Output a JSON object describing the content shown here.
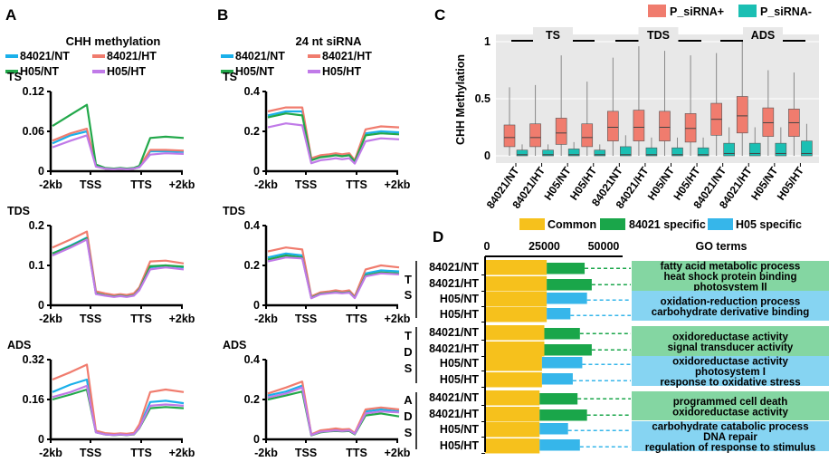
{
  "colors": {
    "nt84021": "#1ab0ea",
    "ht84021": "#f07c6e",
    "nt_h05": "#22a84a",
    "ht_h05": "#c07ae8",
    "siPlus": "#f07c6e",
    "siMinus": "#1bbfb3",
    "box_bg": "#e8e8e8",
    "common": "#f6c11c",
    "spec84021": "#1aa64a",
    "specH05": "#36b6ea",
    "go_green": "#84d6a2",
    "go_blue": "#86d4f2"
  },
  "panel_labels": {
    "a": "A",
    "b": "B",
    "c": "C",
    "d": "D"
  },
  "chart_data": [
    {
      "id": "A",
      "type": "line",
      "title": "CHH methylation",
      "legend": [
        "84021/NT",
        "84021/HT",
        "H05/NT",
        "H05/HT"
      ],
      "x_ticks": [
        "-2kb",
        "TSS",
        "TTS",
        "+2kb"
      ],
      "subplots": [
        {
          "region": "TS",
          "ylim": [
            0,
            0.12
          ],
          "yticks": [
            "0.12",
            "0.06",
            "0"
          ],
          "series": [
            {
              "name": "84021/NT",
              "values": [
                0.042,
                0.054,
                0.06,
                0.008,
                0.004,
                0.003,
                0.004,
                0.003,
                0.004,
                0.006,
                0.03,
                0.03,
                0.029
              ]
            },
            {
              "name": "84021/HT",
              "values": [
                0.046,
                0.057,
                0.064,
                0.008,
                0.004,
                0.003,
                0.004,
                0.003,
                0.004,
                0.007,
                0.032,
                0.032,
                0.031
              ]
            },
            {
              "name": "H05/NT",
              "values": [
                0.068,
                0.085,
                0.1,
                0.01,
                0.005,
                0.004,
                0.005,
                0.004,
                0.005,
                0.008,
                0.05,
                0.052,
                0.05
              ]
            },
            {
              "name": "H05/HT",
              "values": [
                0.036,
                0.046,
                0.054,
                0.007,
                0.004,
                0.003,
                0.004,
                0.003,
                0.004,
                0.006,
                0.025,
                0.027,
                0.026
              ]
            }
          ]
        },
        {
          "region": "TDS",
          "ylim": [
            0,
            0.2
          ],
          "yticks": [
            "0.2",
            "0.1",
            "0"
          ],
          "series": [
            {
              "name": "84021/NT",
              "values": [
                0.13,
                0.15,
                0.17,
                0.03,
                0.025,
                0.022,
                0.024,
                0.022,
                0.025,
                0.04,
                0.095,
                0.1,
                0.095
              ]
            },
            {
              "name": "84021/HT",
              "values": [
                0.145,
                0.165,
                0.185,
                0.035,
                0.03,
                0.026,
                0.028,
                0.026,
                0.03,
                0.045,
                0.11,
                0.112,
                0.105
              ]
            },
            {
              "name": "H05/NT",
              "values": [
                0.13,
                0.148,
                0.168,
                0.03,
                0.025,
                0.022,
                0.024,
                0.022,
                0.025,
                0.04,
                0.098,
                0.1,
                0.097
              ]
            },
            {
              "name": "H05/HT",
              "values": [
                0.125,
                0.145,
                0.165,
                0.028,
                0.024,
                0.021,
                0.023,
                0.021,
                0.024,
                0.038,
                0.09,
                0.095,
                0.09
              ]
            }
          ]
        },
        {
          "region": "ADS",
          "ylim": [
            0,
            0.32
          ],
          "yticks": [
            "0.32",
            "0.16",
            "0"
          ],
          "series": [
            {
              "name": "84021/NT",
              "values": [
                0.19,
                0.22,
                0.24,
                0.03,
                0.02,
                0.018,
                0.02,
                0.018,
                0.022,
                0.05,
                0.15,
                0.155,
                0.145
              ]
            },
            {
              "name": "84021/HT",
              "values": [
                0.24,
                0.27,
                0.3,
                0.035,
                0.025,
                0.022,
                0.024,
                0.022,
                0.026,
                0.06,
                0.19,
                0.2,
                0.19
              ]
            },
            {
              "name": "H05/NT",
              "values": [
                0.16,
                0.18,
                0.2,
                0.028,
                0.02,
                0.017,
                0.019,
                0.017,
                0.02,
                0.045,
                0.125,
                0.13,
                0.125
              ]
            },
            {
              "name": "H05/HT",
              "values": [
                0.17,
                0.19,
                0.215,
                0.028,
                0.02,
                0.018,
                0.02,
                0.018,
                0.021,
                0.047,
                0.135,
                0.14,
                0.135
              ]
            }
          ]
        }
      ]
    },
    {
      "id": "B",
      "type": "line",
      "title": "24 nt siRNA",
      "legend": [
        "84021/NT",
        "84021/HT",
        "H05/NT",
        "H05/HT"
      ],
      "x_ticks": [
        "-2kb",
        "TSS",
        "TTS",
        "+2kb"
      ],
      "subplots": [
        {
          "region": "TS",
          "ylim": [
            0,
            0.4
          ],
          "yticks": [
            "0.4",
            "0.2",
            "0"
          ],
          "series": [
            {
              "name": "84021/NT",
              "values": [
                0.28,
                0.3,
                0.3,
                0.06,
                0.075,
                0.08,
                0.085,
                0.08,
                0.085,
                0.05,
                0.19,
                0.2,
                0.195
              ]
            },
            {
              "name": "84021/HT",
              "values": [
                0.3,
                0.32,
                0.32,
                0.065,
                0.08,
                0.085,
                0.09,
                0.085,
                0.09,
                0.055,
                0.21,
                0.225,
                0.22
              ]
            },
            {
              "name": "H05/NT",
              "values": [
                0.27,
                0.29,
                0.28,
                0.055,
                0.07,
                0.075,
                0.08,
                0.075,
                0.08,
                0.048,
                0.18,
                0.19,
                0.185
              ]
            },
            {
              "name": "H05/HT",
              "values": [
                0.22,
                0.24,
                0.23,
                0.04,
                0.055,
                0.06,
                0.065,
                0.06,
                0.065,
                0.038,
                0.15,
                0.165,
                0.16
              ]
            }
          ]
        },
        {
          "region": "TDS",
          "ylim": [
            0,
            0.4
          ],
          "yticks": [
            "0.4",
            "0.2",
            "0"
          ],
          "series": [
            {
              "name": "84021/NT",
              "values": [
                0.24,
                0.26,
                0.25,
                0.04,
                0.06,
                0.065,
                0.068,
                0.065,
                0.068,
                0.04,
                0.16,
                0.175,
                0.17
              ]
            },
            {
              "name": "84021/HT",
              "values": [
                0.27,
                0.29,
                0.28,
                0.045,
                0.065,
                0.07,
                0.075,
                0.07,
                0.075,
                0.045,
                0.18,
                0.2,
                0.19
              ]
            },
            {
              "name": "H05/NT",
              "values": [
                0.23,
                0.25,
                0.24,
                0.038,
                0.058,
                0.062,
                0.066,
                0.062,
                0.066,
                0.038,
                0.15,
                0.165,
                0.16
              ]
            },
            {
              "name": "H05/HT",
              "values": [
                0.22,
                0.24,
                0.235,
                0.035,
                0.055,
                0.06,
                0.063,
                0.06,
                0.063,
                0.036,
                0.145,
                0.16,
                0.155
              ]
            }
          ]
        },
        {
          "region": "ADS",
          "ylim": [
            0,
            0.4
          ],
          "yticks": [
            "0.4",
            "0.2",
            "0"
          ],
          "series": [
            {
              "name": "84021/NT",
              "values": [
                0.22,
                0.24,
                0.27,
                0.025,
                0.04,
                0.045,
                0.05,
                0.045,
                0.048,
                0.03,
                0.14,
                0.15,
                0.14
              ]
            },
            {
              "name": "84021/HT",
              "values": [
                0.23,
                0.26,
                0.29,
                0.025,
                0.045,
                0.05,
                0.055,
                0.05,
                0.052,
                0.032,
                0.15,
                0.16,
                0.15
              ]
            },
            {
              "name": "H05/NT",
              "values": [
                0.2,
                0.22,
                0.24,
                0.02,
                0.035,
                0.04,
                0.042,
                0.04,
                0.042,
                0.025,
                0.12,
                0.13,
                0.115
              ]
            },
            {
              "name": "H05/HT",
              "values": [
                0.21,
                0.23,
                0.26,
                0.022,
                0.038,
                0.042,
                0.045,
                0.042,
                0.045,
                0.028,
                0.13,
                0.14,
                0.135
              ]
            }
          ]
        }
      ]
    },
    {
      "id": "C",
      "type": "box",
      "ylabel": "CHH Methylation",
      "ylim": [
        0,
        1
      ],
      "yticks": [
        "0",
        "0.5",
        "1"
      ],
      "legend": [
        "P_siRNA+",
        "P_siRNA-"
      ],
      "groups": [
        "TS",
        "TDS",
        "ADS"
      ],
      "categories": [
        "84021/NT",
        "84021/HT",
        "H05/NT",
        "H05/HT",
        "84021NT",
        "84021/HT",
        "H05/NT",
        "H05/HT",
        "84021/NT",
        "84021/HT",
        "H05/NT",
        "H05/HT"
      ],
      "boxes_siRNA_plus": [
        {
          "min": 0,
          "q1": 0.08,
          "med": 0.16,
          "q3": 0.27,
          "max": 0.6
        },
        {
          "min": 0,
          "q1": 0.08,
          "med": 0.16,
          "q3": 0.28,
          "max": 0.62
        },
        {
          "min": 0,
          "q1": 0.1,
          "med": 0.2,
          "q3": 0.33,
          "max": 0.88
        },
        {
          "min": 0,
          "q1": 0.08,
          "med": 0.16,
          "q3": 0.28,
          "max": 0.65
        },
        {
          "min": 0,
          "q1": 0.13,
          "med": 0.25,
          "q3": 0.39,
          "max": 0.86
        },
        {
          "min": 0,
          "q1": 0.13,
          "med": 0.25,
          "q3": 0.4,
          "max": 0.96
        },
        {
          "min": 0,
          "q1": 0.13,
          "med": 0.25,
          "q3": 0.39,
          "max": 0.92
        },
        {
          "min": 0,
          "q1": 0.12,
          "med": 0.24,
          "q3": 0.37,
          "max": 0.88
        },
        {
          "min": 0,
          "q1": 0.18,
          "med": 0.32,
          "q3": 0.46,
          "max": 0.9
        },
        {
          "min": 0,
          "q1": 0.2,
          "med": 0.35,
          "q3": 0.52,
          "max": 1.0
        },
        {
          "min": 0,
          "q1": 0.17,
          "med": 0.29,
          "q3": 0.42,
          "max": 0.75
        },
        {
          "min": 0,
          "q1": 0.17,
          "med": 0.29,
          "q3": 0.41,
          "max": 0.73
        }
      ],
      "boxes_siRNA_minus": [
        {
          "min": 0,
          "q1": 0,
          "med": 0.01,
          "q3": 0.05,
          "max": 0.1
        },
        {
          "min": 0,
          "q1": 0,
          "med": 0.01,
          "q3": 0.05,
          "max": 0.1
        },
        {
          "min": 0,
          "q1": 0,
          "med": 0.01,
          "q3": 0.06,
          "max": 0.12
        },
        {
          "min": 0,
          "q1": 0,
          "med": 0.01,
          "q3": 0.05,
          "max": 0.1
        },
        {
          "min": 0,
          "q1": 0,
          "med": 0.01,
          "q3": 0.08,
          "max": 0.18
        },
        {
          "min": 0,
          "q1": 0,
          "med": 0.01,
          "q3": 0.07,
          "max": 0.16
        },
        {
          "min": 0,
          "q1": 0,
          "med": 0.01,
          "q3": 0.07,
          "max": 0.16
        },
        {
          "min": 0,
          "q1": 0,
          "med": 0.01,
          "q3": 0.07,
          "max": 0.16
        },
        {
          "min": 0,
          "q1": 0,
          "med": 0.02,
          "q3": 0.11,
          "max": 0.25
        },
        {
          "min": 0,
          "q1": 0,
          "med": 0.02,
          "q3": 0.11,
          "max": 0.25
        },
        {
          "min": 0,
          "q1": 0,
          "med": 0.02,
          "q3": 0.11,
          "max": 0.25
        },
        {
          "min": 0,
          "q1": 0,
          "med": 0.02,
          "q3": 0.13,
          "max": 0.28
        }
      ]
    },
    {
      "id": "D",
      "type": "bar",
      "orientation": "horizontal",
      "stacked": true,
      "legend": [
        "Common",
        "84021 specific",
        "H05 specific"
      ],
      "x_ticks": [
        "0",
        "25000",
        "50000"
      ],
      "xlim": [
        0,
        50000
      ],
      "go_header": "GO terms",
      "rows": [
        {
          "group": "TS",
          "label": "84021/NT",
          "common": 26000,
          "specific": 16000,
          "spec_type": "84021"
        },
        {
          "group": "TS",
          "label": "84021/HT",
          "common": 26000,
          "specific": 19000,
          "spec_type": "84021"
        },
        {
          "group": "TS",
          "label": "H05/NT",
          "common": 26000,
          "specific": 17000,
          "spec_type": "H05"
        },
        {
          "group": "TS",
          "label": "H05/HT",
          "common": 26000,
          "specific": 10000,
          "spec_type": "H05"
        },
        {
          "group": "TDS",
          "label": "84021/NT",
          "common": 25000,
          "specific": 15000,
          "spec_type": "84021"
        },
        {
          "group": "TDS",
          "label": "84021/HT",
          "common": 25000,
          "specific": 20000,
          "spec_type": "84021"
        },
        {
          "group": "TDS",
          "label": "H05/NT",
          "common": 24000,
          "specific": 17000,
          "spec_type": "H05"
        },
        {
          "group": "TDS",
          "label": "H05/HT",
          "common": 24000,
          "specific": 13000,
          "spec_type": "H05"
        },
        {
          "group": "ADS",
          "label": "84021/NT",
          "common": 23000,
          "specific": 16000,
          "spec_type": "84021"
        },
        {
          "group": "ADS",
          "label": "84021/HT",
          "common": 23000,
          "specific": 20000,
          "spec_type": "84021"
        },
        {
          "group": "ADS",
          "label": "H05/NT",
          "common": 23000,
          "specific": 12000,
          "spec_type": "H05"
        },
        {
          "group": "ADS",
          "label": "H05/HT",
          "common": 23000,
          "specific": 17000,
          "spec_type": "H05"
        }
      ],
      "go_terms": [
        {
          "type": "84021",
          "lines": [
            "fatty acid metabolic process",
            "heat shock protein binding",
            "photosystem II"
          ]
        },
        {
          "type": "H05",
          "lines": [
            "oxidation-reduction process",
            "carbohydrate derivative binding"
          ]
        },
        {
          "type": "84021",
          "lines": [
            "oxidoreductase activity",
            "signal transducer activity"
          ]
        },
        {
          "type": "H05",
          "lines": [
            "oxidoreductase activity",
            "photosystem I",
            "response to oxidative stress"
          ]
        },
        {
          "type": "84021",
          "lines": [
            "programmed cell death",
            "oxidoreductase activity"
          ]
        },
        {
          "type": "H05",
          "lines": [
            "carbohydrate catabolic process",
            "DNA repair",
            "regulation of response to stimulus"
          ]
        }
      ]
    }
  ]
}
